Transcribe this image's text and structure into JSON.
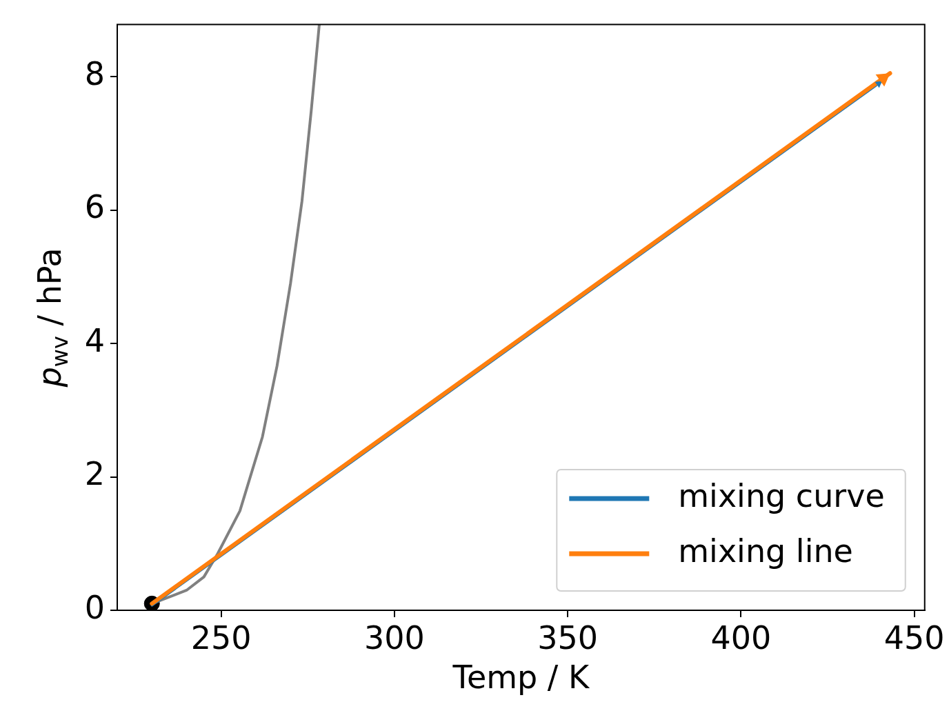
{
  "chart_data": {
    "type": "line",
    "xlabel": "Temp / K",
    "ylabel": "p$_{wv}$ / hPa",
    "xlim": [
      220,
      453
    ],
    "xticks": [
      250,
      300,
      350,
      400,
      450
    ],
    "ylim": [
      0,
      8.78
    ],
    "yticks": [
      0,
      2,
      4,
      6,
      8
    ],
    "grid": false,
    "legend": "bottom right",
    "line_style": "solid",
    "series": [
      {
        "color": "#808080",
        "x": [
          230,
          240,
          245,
          249,
          255.4,
          261.9,
          266.1,
          270,
          273.3,
          276,
          278.3
        ],
        "values": [
          0.1,
          0.3,
          0.5,
          0.85,
          1.49,
          2.6,
          3.66,
          4.9,
          6.13,
          7.5,
          8.78
        ]
      },
      {
        "name": "mixing curve",
        "color": "#1f77b4",
        "x": [
          230,
          440.7
        ],
        "values": [
          0.07,
          7.93
        ]
      },
      {
        "name": "mixing line",
        "color": "#ff7f0e",
        "x": [
          230,
          443
        ],
        "values": [
          0.1,
          8.05
        ]
      },
      {
        "type": "scatter",
        "color": "#000000",
        "marker": "circle",
        "x": [
          230
        ],
        "values": [
          0.1
        ]
      }
    ]
  }
}
